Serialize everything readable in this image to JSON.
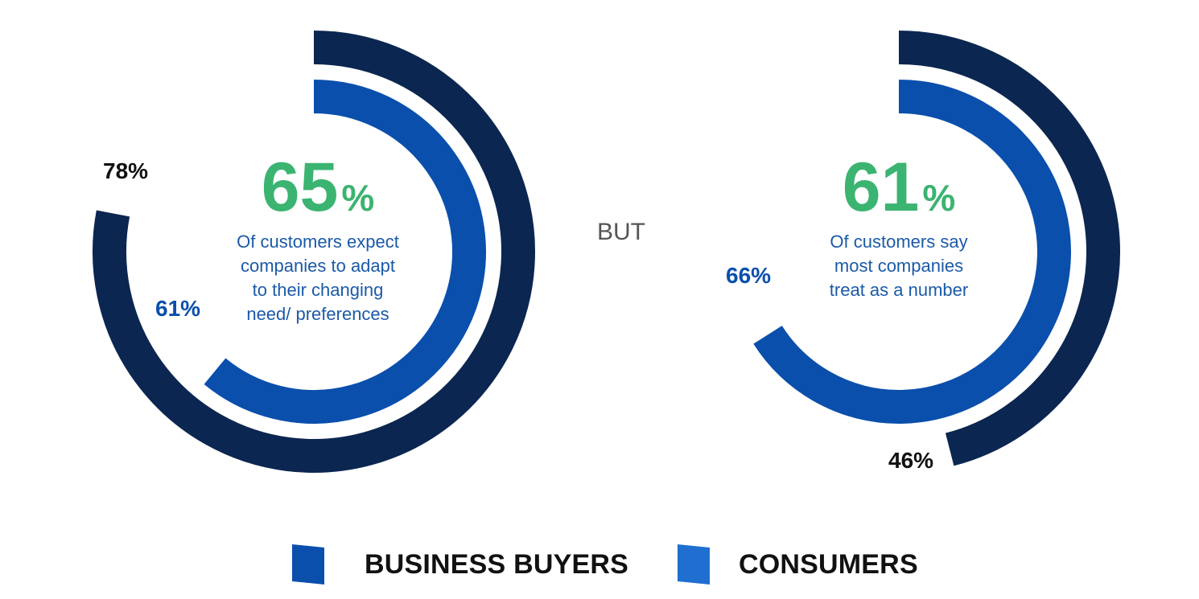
{
  "colors": {
    "business": "#0b2650",
    "consumers": "#0a4fac",
    "highlight": "#3bb471",
    "desc_text": "#1b5aa8",
    "label_dark": "#111111",
    "label_blue": "#0a4fac",
    "legend_business": "#0a4fac",
    "legend_consumers": "#1f6fd1"
  },
  "connector": "BUT",
  "chart_data": [
    {
      "type": "radial-bar",
      "headline_value": "65",
      "headline_unit": "%",
      "description_lines": [
        "Of customers expect",
        "companies to adapt",
        "to their changing",
        "need/ preferences"
      ],
      "series": [
        {
          "name": "BUSINESS BUYERS",
          "value": 78,
          "label": "78%"
        },
        {
          "name": "CONSUMERS",
          "value": 61,
          "label": "61%"
        }
      ]
    },
    {
      "type": "radial-bar",
      "headline_value": "61",
      "headline_unit": "%",
      "description_lines": [
        "Of customers say",
        "most companies",
        "treat as a number"
      ],
      "series": [
        {
          "name": "BUSINESS BUYERS",
          "value": 46,
          "label": "46%"
        },
        {
          "name": "CONSUMERS",
          "value": 66,
          "label": "66%"
        }
      ]
    }
  ],
  "legend": [
    {
      "label": "BUSINESS BUYERS"
    },
    {
      "label": "CONSUMERS"
    }
  ]
}
